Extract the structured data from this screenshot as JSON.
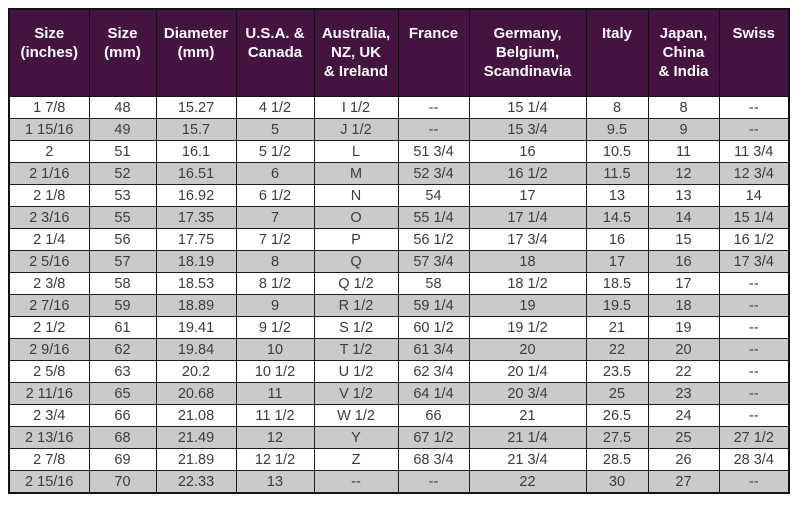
{
  "colors": {
    "header_background": "#441340",
    "header_text": "#ffffff",
    "row_background": "#ffffff",
    "row_alt_background": "#cacaca",
    "cell_text": "#3c3c3c",
    "border": "#1c1c1c"
  },
  "chart_data": {
    "type": "table",
    "columns": [
      "Size\n(inches)",
      "Size\n(mm)",
      "Diameter\n(mm)",
      "U.S.A. &\nCanada",
      "Australia,\nNZ, UK\n& Ireland",
      "France",
      "Germany,\nBelgium,\nScandinavia",
      "Italy",
      "Japan,\nChina\n& India",
      "Swiss"
    ],
    "rows": [
      [
        "1 7/8",
        "48",
        "15.27",
        "4 1/2",
        "I 1/2",
        "--",
        "15 1/4",
        "8",
        "8",
        "--"
      ],
      [
        "1 15/16",
        "49",
        "15.7",
        "5",
        "J 1/2",
        "--",
        "15 3/4",
        "9.5",
        "9",
        "--"
      ],
      [
        "2",
        "51",
        "16.1",
        "5 1/2",
        "L",
        "51 3/4",
        "16",
        "10.5",
        "11",
        "11 3/4"
      ],
      [
        "2 1/16",
        "52",
        "16.51",
        "6",
        "M",
        "52 3/4",
        "16 1/2",
        "11.5",
        "12",
        "12 3/4"
      ],
      [
        "2 1/8",
        "53",
        "16.92",
        "6 1/2",
        "N",
        "54",
        "17",
        "13",
        "13",
        "14"
      ],
      [
        "2 3/16",
        "55",
        "17.35",
        "7",
        "O",
        "55 1/4",
        "17 1/4",
        "14.5",
        "14",
        "15 1/4"
      ],
      [
        "2 1/4",
        "56",
        "17.75",
        "7 1/2",
        "P",
        "56 1/2",
        "17 3/4",
        "16",
        "15",
        "16 1/2"
      ],
      [
        "2 5/16",
        "57",
        "18.19",
        "8",
        "Q",
        "57 3/4",
        "18",
        "17",
        "16",
        "17 3/4"
      ],
      [
        "2 3/8",
        "58",
        "18.53",
        "8 1/2",
        "Q 1/2",
        "58",
        "18 1/2",
        "18.5",
        "17",
        "--"
      ],
      [
        "2 7/16",
        "59",
        "18.89",
        "9",
        "R 1/2",
        "59 1/4",
        "19",
        "19.5",
        "18",
        "--"
      ],
      [
        "2 1/2",
        "61",
        "19.41",
        "9 1/2",
        "S 1/2",
        "60 1/2",
        "19 1/2",
        "21",
        "19",
        "--"
      ],
      [
        "2 9/16",
        "62",
        "19.84",
        "10",
        "T 1/2",
        "61 3/4",
        "20",
        "22",
        "20",
        "--"
      ],
      [
        "2 5/8",
        "63",
        "20.2",
        "10 1/2",
        "U 1/2",
        "62 3/4",
        "20 1/4",
        "23.5",
        "22",
        "--"
      ],
      [
        "2 11/16",
        "65",
        "20.68",
        "11",
        "V 1/2",
        "64 1/4",
        "20 3/4",
        "25",
        "23",
        "--"
      ],
      [
        "2 3/4",
        "66",
        "21.08",
        "11 1/2",
        "W 1/2",
        "66",
        "21",
        "26.5",
        "24",
        "--"
      ],
      [
        "2 13/16",
        "68",
        "21.49",
        "12",
        "Y",
        "67 1/2",
        "21 1/4",
        "27.5",
        "25",
        "27 1/2"
      ],
      [
        "2 7/8",
        "69",
        "21.89",
        "12 1/2",
        "Z",
        "68 3/4",
        "21 3/4",
        "28.5",
        "26",
        "28 3/4"
      ],
      [
        "2 15/16",
        "70",
        "22.33",
        "13",
        "--",
        "--",
        "22",
        "30",
        "27",
        "--"
      ]
    ]
  }
}
